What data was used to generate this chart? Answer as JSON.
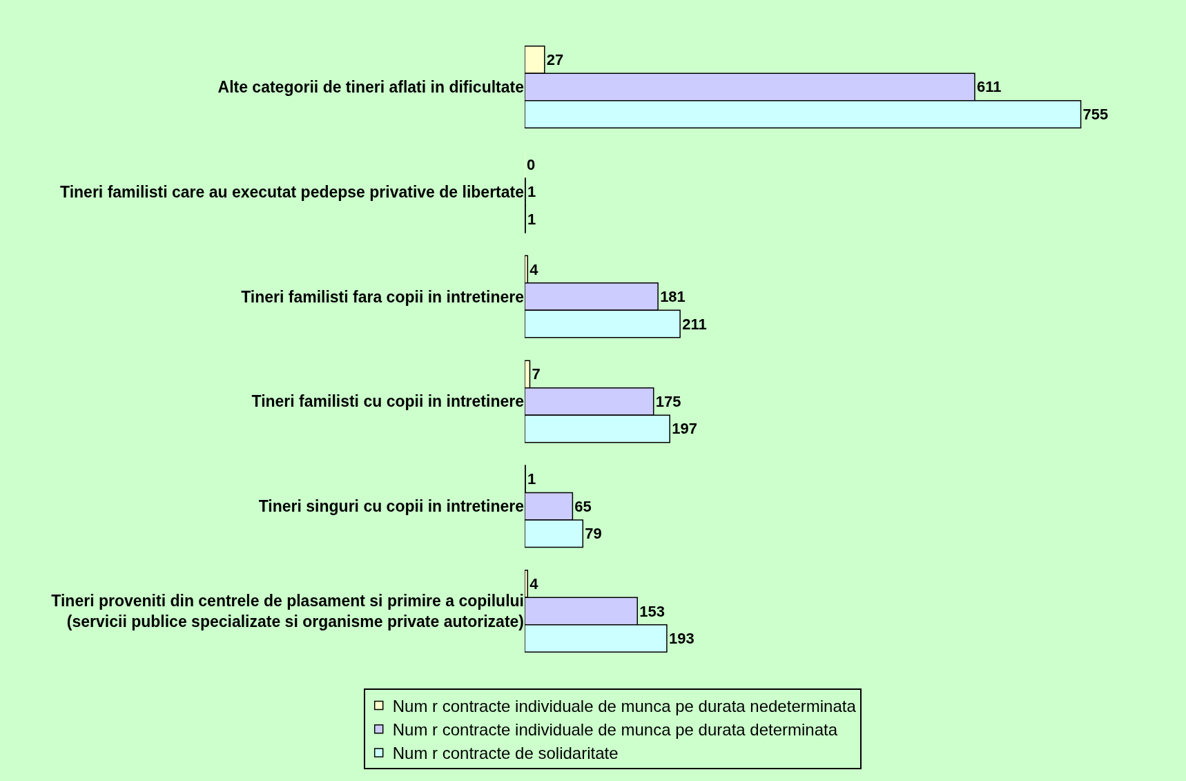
{
  "chart_data": {
    "type": "bar",
    "orientation": "horizontal",
    "categories": [
      "Alte categorii de tineri aflati in dificultate",
      "Tineri familisti care au executat pedepse privative de libertate",
      "Tineri familisti fara copii in intretinere",
      "Tineri familisti cu copii in intretinere",
      "Tineri singuri cu copii in intretinere",
      "Tineri proveniti din centrele de plasament si primire a copilului\n(servicii publice specializate si organisme private autorizate)"
    ],
    "series": [
      {
        "name": "Num r contracte individuale de munca pe durata nedeterminata",
        "color": "#ffffcc",
        "values": [
          27,
          0,
          4,
          7,
          1,
          4
        ]
      },
      {
        "name": "Num r contracte individuale de munca pe durata determinata",
        "color": "#ccccff",
        "values": [
          611,
          1,
          181,
          175,
          65,
          153
        ]
      },
      {
        "name": "Num r contracte de solidaritate",
        "color": "#ccffff",
        "values": [
          755,
          1,
          211,
          197,
          79,
          193
        ]
      }
    ],
    "data_labels": true,
    "grid": false,
    "legend": "bottom"
  }
}
